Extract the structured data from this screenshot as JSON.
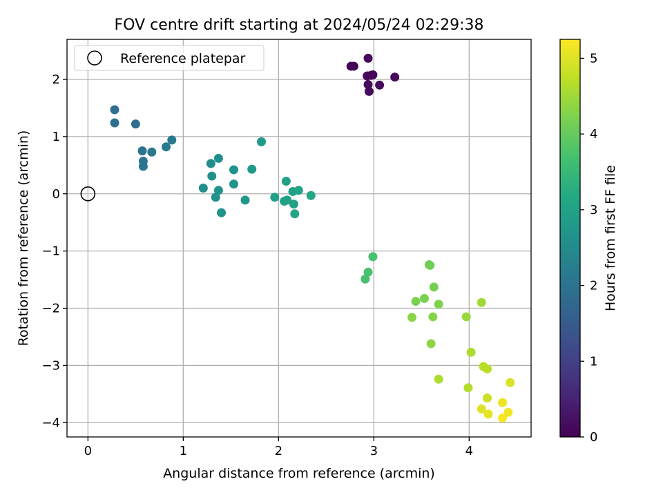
{
  "chart_data": {
    "type": "scatter",
    "title": "FOV centre drift starting at 2024/05/24 02:29:38",
    "xlabel": "Angular distance from reference (arcmin)",
    "ylabel": "Rotation from reference (arcmin)",
    "xlim": [
      -0.22,
      4.65
    ],
    "ylim": [
      -4.25,
      2.7
    ],
    "xticks": [
      0,
      1,
      2,
      3,
      4
    ],
    "yticks": [
      -4,
      -3,
      -2,
      -1,
      0,
      1,
      2
    ],
    "xtick_labels": [
      "0",
      "1",
      "2",
      "3",
      "4"
    ],
    "ytick_labels": [
      "−4",
      "−3",
      "−2",
      "−1",
      "0",
      "1",
      "2"
    ],
    "grid": true,
    "legend_position": "top-left",
    "reference": {
      "label": "Reference platepar",
      "x": 0,
      "y": 0
    },
    "colorbar": {
      "label": "Hours from first FF file",
      "min": 0,
      "max": 5.25,
      "ticks": [
        0,
        1,
        2,
        3,
        4,
        5
      ],
      "tick_labels": [
        "0",
        "1",
        "2",
        "3",
        "4",
        "5"
      ],
      "colormap": "viridis"
    },
    "points": [
      {
        "x": 2.76,
        "y": 2.23,
        "hours": 0.05
      },
      {
        "x": 2.79,
        "y": 2.23,
        "hours": 0.05
      },
      {
        "x": 2.94,
        "y": 2.37,
        "hours": 0.1
      },
      {
        "x": 2.93,
        "y": 2.06,
        "hours": 0.1
      },
      {
        "x": 2.99,
        "y": 2.08,
        "hours": 0.1
      },
      {
        "x": 2.97,
        "y": 2.07,
        "hours": 0.1
      },
      {
        "x": 3.22,
        "y": 2.04,
        "hours": 0.1
      },
      {
        "x": 2.94,
        "y": 1.91,
        "hours": 0.15
      },
      {
        "x": 3.06,
        "y": 1.9,
        "hours": 0.15
      },
      {
        "x": 2.95,
        "y": 1.79,
        "hours": 0.15
      },
      {
        "x": 0.28,
        "y": 1.47,
        "hours": 1.9
      },
      {
        "x": 0.28,
        "y": 1.24,
        "hours": 1.9
      },
      {
        "x": 0.5,
        "y": 1.22,
        "hours": 1.9
      },
      {
        "x": 0.57,
        "y": 0.75,
        "hours": 2.0
      },
      {
        "x": 0.58,
        "y": 0.57,
        "hours": 2.05
      },
      {
        "x": 0.58,
        "y": 0.48,
        "hours": 2.05
      },
      {
        "x": 0.67,
        "y": 0.73,
        "hours": 2.1
      },
      {
        "x": 0.82,
        "y": 0.82,
        "hours": 2.15
      },
      {
        "x": 0.88,
        "y": 0.94,
        "hours": 2.15
      },
      {
        "x": 1.29,
        "y": 0.53,
        "hours": 2.55
      },
      {
        "x": 1.37,
        "y": 0.62,
        "hours": 2.6
      },
      {
        "x": 1.3,
        "y": 0.31,
        "hours": 2.6
      },
      {
        "x": 1.21,
        "y": 0.1,
        "hours": 2.6
      },
      {
        "x": 1.37,
        "y": 0.06,
        "hours": 2.65
      },
      {
        "x": 1.34,
        "y": -0.06,
        "hours": 2.65
      },
      {
        "x": 1.4,
        "y": -0.33,
        "hours": 2.7
      },
      {
        "x": 1.53,
        "y": 0.42,
        "hours": 2.7
      },
      {
        "x": 1.53,
        "y": 0.17,
        "hours": 2.7
      },
      {
        "x": 1.65,
        "y": -0.11,
        "hours": 2.75
      },
      {
        "x": 1.72,
        "y": 0.43,
        "hours": 2.8
      },
      {
        "x": 1.82,
        "y": 0.91,
        "hours": 2.85
      },
      {
        "x": 1.96,
        "y": -0.06,
        "hours": 2.95
      },
      {
        "x": 2.08,
        "y": 0.22,
        "hours": 3.0
      },
      {
        "x": 2.06,
        "y": -0.13,
        "hours": 3.0
      },
      {
        "x": 2.09,
        "y": -0.11,
        "hours": 3.0
      },
      {
        "x": 2.15,
        "y": 0.04,
        "hours": 3.0
      },
      {
        "x": 2.16,
        "y": -0.18,
        "hours": 3.0
      },
      {
        "x": 2.17,
        "y": -0.35,
        "hours": 3.05
      },
      {
        "x": 2.21,
        "y": 0.06,
        "hours": 3.05
      },
      {
        "x": 2.34,
        "y": -0.03,
        "hours": 3.1
      },
      {
        "x": 2.99,
        "y": -1.1,
        "hours": 3.7
      },
      {
        "x": 2.94,
        "y": -1.37,
        "hours": 3.7
      },
      {
        "x": 2.91,
        "y": -1.49,
        "hours": 3.7
      },
      {
        "x": 3.58,
        "y": -1.24,
        "hours": 4.1
      },
      {
        "x": 3.59,
        "y": -1.25,
        "hours": 4.1
      },
      {
        "x": 3.63,
        "y": -1.63,
        "hours": 4.15
      },
      {
        "x": 3.44,
        "y": -1.88,
        "hours": 4.2
      },
      {
        "x": 3.53,
        "y": -1.83,
        "hours": 4.2
      },
      {
        "x": 3.68,
        "y": -1.93,
        "hours": 4.25
      },
      {
        "x": 3.4,
        "y": -2.16,
        "hours": 4.3
      },
      {
        "x": 3.62,
        "y": -2.15,
        "hours": 4.3
      },
      {
        "x": 3.6,
        "y": -2.62,
        "hours": 4.35
      },
      {
        "x": 3.97,
        "y": -2.15,
        "hours": 4.45
      },
      {
        "x": 4.13,
        "y": -1.9,
        "hours": 4.5
      },
      {
        "x": 4.02,
        "y": -2.77,
        "hours": 4.6
      },
      {
        "x": 3.68,
        "y": -3.24,
        "hours": 4.6
      },
      {
        "x": 3.99,
        "y": -3.39,
        "hours": 4.65
      },
      {
        "x": 4.15,
        "y": -3.02,
        "hours": 4.7
      },
      {
        "x": 4.19,
        "y": -3.06,
        "hours": 4.7
      },
      {
        "x": 4.19,
        "y": -3.57,
        "hours": 4.85
      },
      {
        "x": 4.43,
        "y": -3.3,
        "hours": 4.95
      },
      {
        "x": 4.13,
        "y": -3.76,
        "hours": 5.0
      },
      {
        "x": 4.2,
        "y": -3.85,
        "hours": 5.05
      },
      {
        "x": 4.35,
        "y": -3.65,
        "hours": 5.1
      },
      {
        "x": 4.41,
        "y": -3.82,
        "hours": 5.15
      },
      {
        "x": 4.35,
        "y": -3.92,
        "hours": 5.2
      }
    ]
  }
}
